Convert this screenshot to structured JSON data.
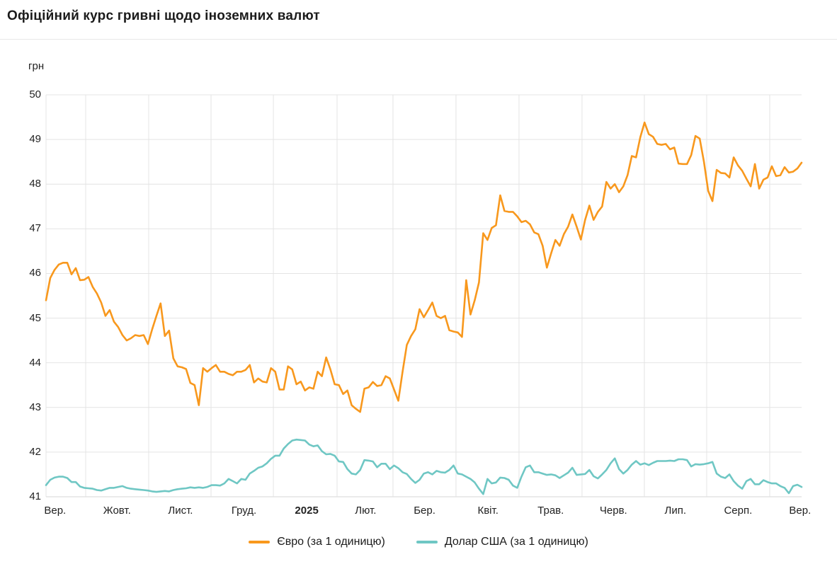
{
  "header": {
    "title": "Офіційний курс гривні щодо іноземних валют"
  },
  "chart_data": {
    "type": "line",
    "title": "Офіційний курс гривні щодо іноземних валют",
    "ylabel": "грн",
    "ylim": [
      41,
      50
    ],
    "y_ticks": [
      50,
      49,
      48,
      47,
      46,
      45,
      44,
      43,
      42,
      41
    ],
    "grid": "on",
    "legend_position": "bottom-center",
    "x_axis_note": "monthly labels from Sep 2024 to Sep 2025, x positions as fraction of time axis",
    "x_labels": [
      {
        "label": "Вер.",
        "pos": 0.012,
        "bold": false
      },
      {
        "label": "Жовт.",
        "pos": 0.094,
        "bold": false
      },
      {
        "label": "Лист.",
        "pos": 0.178,
        "bold": false
      },
      {
        "label": "Груд.",
        "pos": 0.262,
        "bold": false
      },
      {
        "label": "2025",
        "pos": 0.345,
        "bold": true
      },
      {
        "label": "Лют.",
        "pos": 0.423,
        "bold": false
      },
      {
        "label": "Бер.",
        "pos": 0.501,
        "bold": false
      },
      {
        "label": "Квіт.",
        "pos": 0.585,
        "bold": false
      },
      {
        "label": "Трав.",
        "pos": 0.668,
        "bold": false
      },
      {
        "label": "Черв.",
        "pos": 0.751,
        "bold": false
      },
      {
        "label": "Лип.",
        "pos": 0.833,
        "bold": false
      },
      {
        "label": "Серп.",
        "pos": 0.916,
        "bold": false
      },
      {
        "label": "Вер.",
        "pos": 0.998,
        "bold": false
      }
    ],
    "month_gridlines": [
      0.0,
      0.0525,
      0.1359,
      0.2184,
      0.3009,
      0.3852,
      0.4592,
      0.5426,
      0.626,
      0.7094,
      0.7919,
      0.8744,
      0.9578
    ],
    "series": [
      {
        "name": "Євро (за 1 одиницю)",
        "color": "#f8981d",
        "values": [
          45.4,
          45.9,
          46.08,
          46.2,
          46.24,
          46.24,
          45.98,
          46.12,
          45.85,
          45.86,
          45.92,
          45.7,
          45.55,
          45.35,
          45.05,
          45.18,
          44.92,
          44.8,
          44.62,
          44.5,
          44.55,
          44.62,
          44.6,
          44.62,
          44.42,
          44.75,
          45.05,
          45.33,
          44.6,
          44.72,
          44.1,
          43.92,
          43.9,
          43.86,
          43.55,
          43.5,
          43.05,
          43.88,
          43.8,
          43.88,
          43.95,
          43.8,
          43.8,
          43.75,
          43.72,
          43.8,
          43.8,
          43.84,
          43.95,
          43.56,
          43.65,
          43.58,
          43.56,
          43.88,
          43.8,
          43.4,
          43.4,
          43.92,
          43.85,
          43.52,
          43.58,
          43.38,
          43.45,
          43.42,
          43.8,
          43.7,
          44.12,
          43.85,
          43.52,
          43.5,
          43.3,
          43.38,
          43.05,
          42.97,
          42.9,
          43.42,
          43.45,
          43.57,
          43.48,
          43.5,
          43.7,
          43.65,
          43.4,
          43.15,
          43.8,
          44.4,
          44.6,
          44.75,
          45.2,
          45.02,
          45.18,
          45.35,
          45.05,
          45.0,
          45.05,
          44.73,
          44.7,
          44.68,
          44.58,
          45.85,
          45.08,
          45.4,
          45.8,
          46.9,
          46.75,
          47.02,
          47.08,
          47.75,
          47.4,
          47.38,
          47.38,
          47.28,
          47.15,
          47.18,
          47.1,
          46.92,
          46.88,
          46.62,
          46.13,
          46.45,
          46.75,
          46.62,
          46.88,
          47.05,
          47.32,
          47.05,
          46.76,
          47.2,
          47.52,
          47.2,
          47.38,
          47.5,
          48.05,
          47.9,
          48.0,
          47.82,
          47.95,
          48.2,
          48.63,
          48.6,
          49.05,
          49.38,
          49.12,
          49.06,
          48.9,
          48.88,
          48.9,
          48.78,
          48.82,
          48.46,
          48.45,
          48.45,
          48.65,
          49.08,
          49.02,
          48.5,
          47.85,
          47.62,
          48.32,
          48.25,
          48.24,
          48.15,
          48.6,
          48.42,
          48.3,
          48.12,
          47.95,
          48.45,
          47.9,
          48.1,
          48.15,
          48.4,
          48.18,
          48.2,
          48.38,
          48.26,
          48.28,
          48.35,
          48.48
        ]
      },
      {
        "name": "Долар США (за 1 одиницю)",
        "color": "#6fc7c4",
        "values": [
          41.26,
          41.38,
          41.43,
          41.45,
          41.45,
          41.42,
          41.33,
          41.33,
          41.23,
          41.2,
          41.19,
          41.18,
          41.15,
          41.14,
          41.17,
          41.2,
          41.2,
          41.22,
          41.24,
          41.2,
          41.18,
          41.17,
          41.16,
          41.15,
          41.14,
          41.12,
          41.11,
          41.12,
          41.13,
          41.12,
          41.15,
          41.17,
          41.18,
          41.19,
          41.21,
          41.2,
          41.21,
          41.2,
          41.22,
          41.26,
          41.26,
          41.25,
          41.3,
          41.4,
          41.35,
          41.3,
          41.4,
          41.38,
          41.52,
          41.58,
          41.65,
          41.68,
          41.75,
          41.85,
          41.92,
          41.92,
          42.08,
          42.18,
          42.26,
          42.28,
          42.27,
          42.26,
          42.17,
          42.13,
          42.15,
          42.02,
          41.95,
          41.96,
          41.92,
          41.79,
          41.78,
          41.62,
          41.52,
          41.5,
          41.6,
          41.82,
          41.81,
          41.79,
          41.66,
          41.74,
          41.74,
          41.62,
          41.7,
          41.64,
          41.55,
          41.51,
          41.4,
          41.31,
          41.38,
          41.52,
          41.55,
          41.5,
          41.58,
          41.55,
          41.54,
          41.6,
          41.7,
          41.52,
          41.5,
          41.45,
          41.4,
          41.32,
          41.18,
          41.06,
          41.4,
          41.3,
          41.32,
          41.43,
          41.42,
          41.38,
          41.25,
          41.2,
          41.45,
          41.66,
          41.7,
          41.55,
          41.55,
          41.52,
          41.49,
          41.5,
          41.48,
          41.42,
          41.48,
          41.54,
          41.65,
          41.49,
          41.5,
          41.51,
          41.6,
          41.46,
          41.41,
          41.5,
          41.6,
          41.75,
          41.86,
          41.62,
          41.52,
          41.6,
          41.72,
          41.8,
          41.72,
          41.75,
          41.71,
          41.76,
          41.8,
          41.8,
          41.8,
          41.81,
          41.8,
          41.84,
          41.84,
          41.82,
          41.68,
          41.73,
          41.72,
          41.73,
          41.75,
          41.78,
          41.52,
          41.45,
          41.42,
          41.5,
          41.35,
          41.25,
          41.18,
          41.35,
          41.4,
          41.28,
          41.28,
          41.37,
          41.33,
          41.3,
          41.3,
          41.24,
          41.2,
          41.08,
          41.24,
          41.27,
          41.22
        ]
      }
    ],
    "colors": {
      "gridline": "#e4e4e4",
      "axis_line": "#d4d4d4",
      "text": "#222222"
    }
  }
}
